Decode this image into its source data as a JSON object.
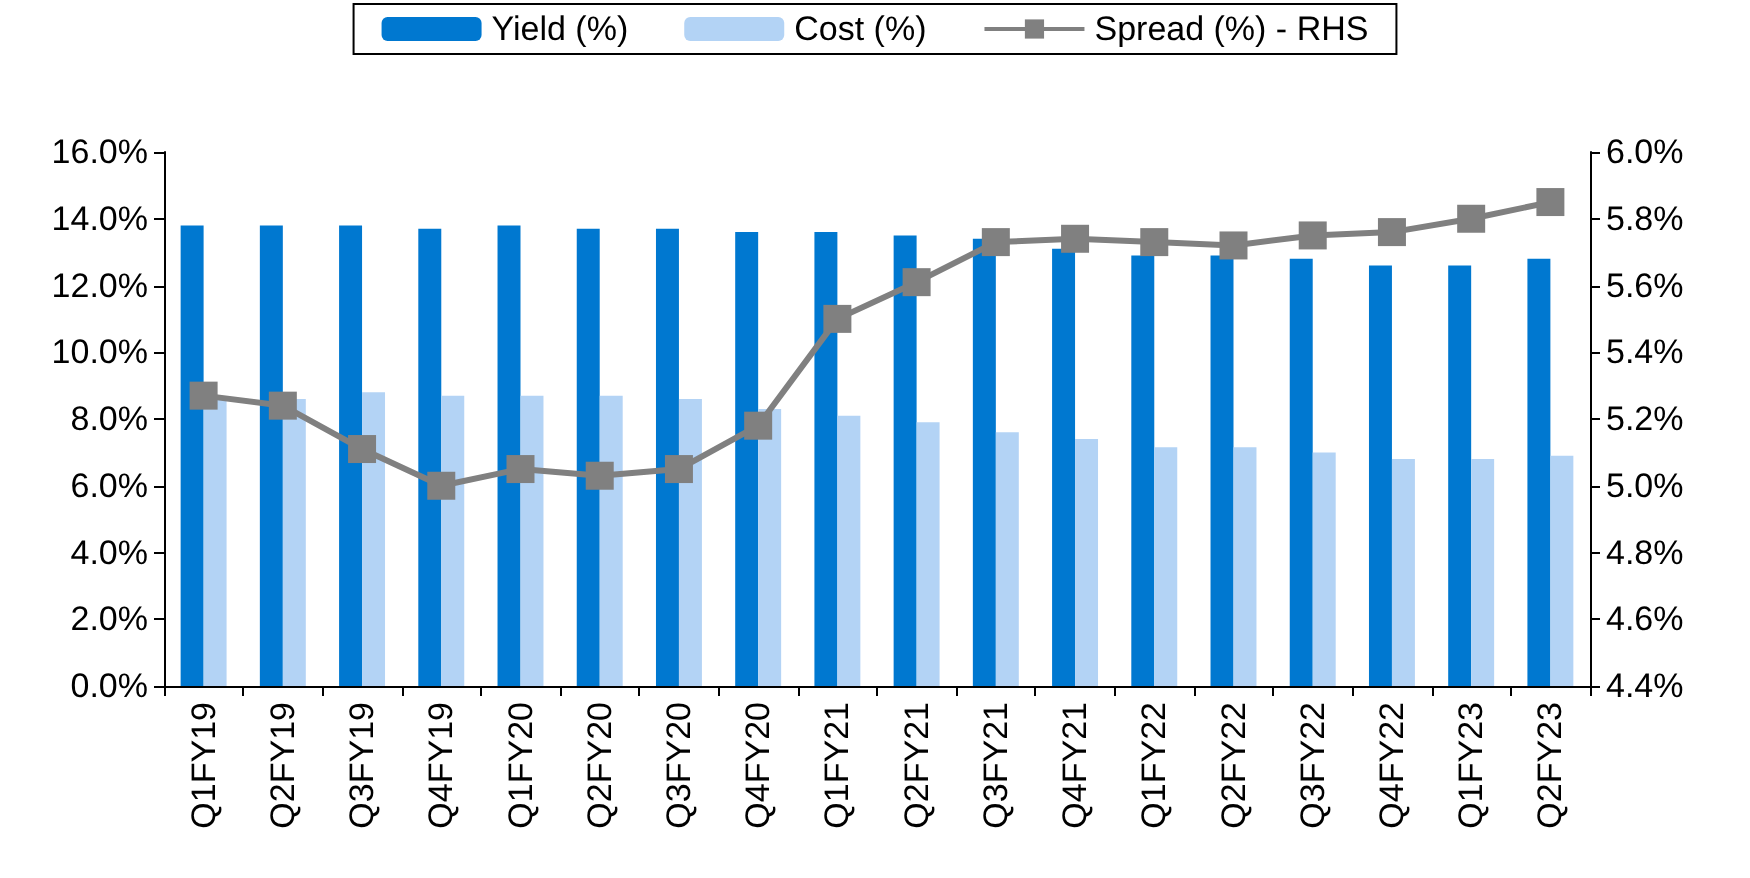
{
  "chart_data": {
    "type": "bar",
    "categories": [
      "Q1FY19",
      "Q2FY19",
      "Q3FY19",
      "Q4FY19",
      "Q1FY20",
      "Q2FY20",
      "Q3FY20",
      "Q4FY20",
      "Q1FY21",
      "Q2FY21",
      "Q3FY21",
      "Q4FY21",
      "Q1FY22",
      "Q2FY22",
      "Q3FY22",
      "Q4FY22",
      "Q1FY23",
      "Q2FY23"
    ],
    "series": [
      {
        "name": "Yield (%)",
        "color": "#0078d0",
        "values": [
          13.8,
          13.8,
          13.8,
          13.7,
          13.8,
          13.7,
          13.7,
          13.6,
          13.6,
          13.5,
          13.4,
          13.1,
          12.9,
          12.9,
          12.8,
          12.6,
          12.6,
          12.8
        ]
      },
      {
        "name": "Cost (%)",
        "color": "#b3d3f5",
        "values": [
          8.6,
          8.6,
          8.8,
          8.7,
          8.7,
          8.7,
          8.6,
          8.3,
          8.1,
          7.9,
          7.6,
          7.4,
          7.15,
          7.15,
          7.0,
          6.8,
          6.8,
          6.9
        ]
      },
      {
        "name": "Spread (%) - RHS",
        "type": "line",
        "axis": "y2",
        "color": "#808080",
        "marker": "square",
        "values": [
          5.27,
          5.24,
          5.11,
          5.0,
          5.05,
          5.03,
          5.05,
          5.18,
          5.5,
          5.61,
          5.73,
          5.74,
          5.73,
          5.72,
          5.75,
          5.76,
          5.8,
          5.85
        ]
      }
    ],
    "ylim": [
      0,
      16
    ],
    "yticks": [
      {
        "value": 0,
        "label": "0.0%"
      },
      {
        "value": 2,
        "label": "2.0%"
      },
      {
        "value": 4,
        "label": "4.0%"
      },
      {
        "value": 6,
        "label": "6.0%"
      },
      {
        "value": 8,
        "label": "8.0%"
      },
      {
        "value": 10,
        "label": "10.0%"
      },
      {
        "value": 12,
        "label": "12.0%"
      },
      {
        "value": 14,
        "label": "14.0%"
      },
      {
        "value": 16,
        "label": "16.0%"
      }
    ],
    "y2lim": [
      4.4,
      6.0
    ],
    "y2ticks": [
      {
        "value": 4.4,
        "label": "4.4%"
      },
      {
        "value": 4.6,
        "label": "4.6%"
      },
      {
        "value": 4.8,
        "label": "4.8%"
      },
      {
        "value": 5.0,
        "label": "5.0%"
      },
      {
        "value": 5.2,
        "label": "5.2%"
      },
      {
        "value": 5.4,
        "label": "5.4%"
      },
      {
        "value": 5.6,
        "label": "5.6%"
      },
      {
        "value": 5.8,
        "label": "5.8%"
      },
      {
        "value": 6.0,
        "label": "6.0%"
      }
    ],
    "grid": false,
    "legend": "top"
  }
}
